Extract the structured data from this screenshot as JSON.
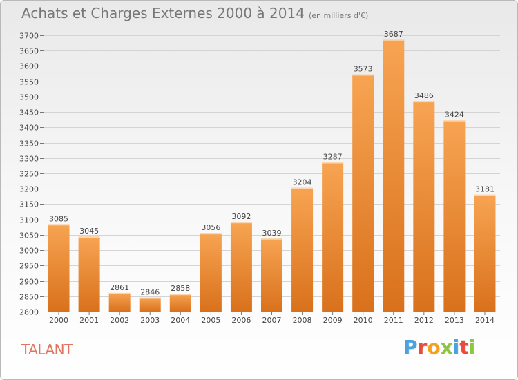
{
  "chart_data": {
    "type": "bar",
    "title": "Achats et Charges Externes 2000 à 2014",
    "subtitle": "(en milliers d'€)",
    "categories": [
      "2000",
      "2001",
      "2002",
      "2003",
      "2004",
      "2005",
      "2006",
      "2007",
      "2008",
      "2009",
      "2010",
      "2011",
      "2012",
      "2013",
      "2014"
    ],
    "values": [
      3085,
      3045,
      2861,
      2846,
      2858,
      3056,
      3092,
      3039,
      3204,
      3287,
      3573,
      3687,
      3486,
      3424,
      3181
    ],
    "ylim": [
      2800,
      3700
    ],
    "ytick_step": 50,
    "grid": true,
    "colors": {
      "bar_top": "#f7a452",
      "bar_bottom": "#d9711c",
      "grid": "#d4d4d4",
      "text": "#444444"
    }
  },
  "place": "TALANT",
  "logo": {
    "text": "Proxiti",
    "letter_colors": [
      "#4aa3df",
      "#e94b3c",
      "#f2a31b",
      "#8dc63f",
      "#4aa3df",
      "#e94b3c",
      "#8dc63f"
    ]
  }
}
